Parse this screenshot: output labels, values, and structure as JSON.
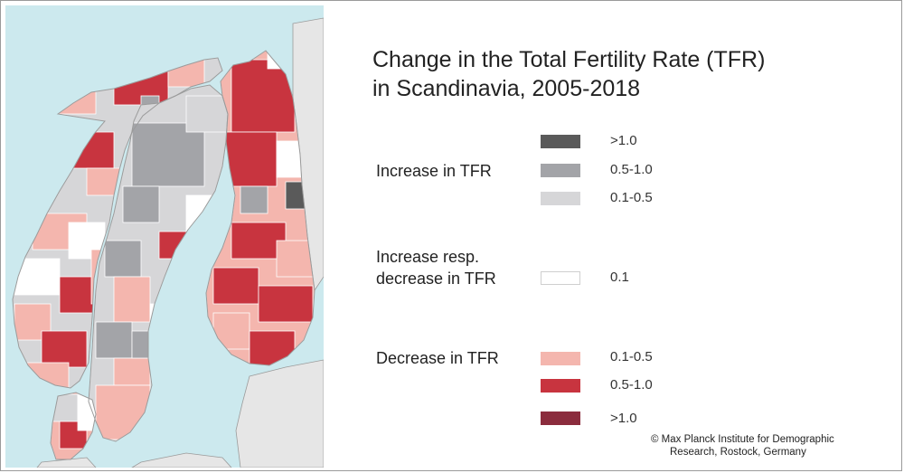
{
  "title": {
    "line1": "Change in the Total Fertility Rate (TFR)",
    "line2": "in Scandinavia, 2005-2018"
  },
  "legend": {
    "increase": {
      "label": "Increase in TFR",
      "classes": [
        {
          "label": ">1.0",
          "color": "#5a5a5a"
        },
        {
          "label": "0.5-1.0",
          "color": "#a3a4a8"
        },
        {
          "label": "0.1-0.5",
          "color": "#d6d6d8"
        }
      ]
    },
    "neutral": {
      "label_line1": "Increase resp.",
      "label_line2": "decrease in TFR",
      "classes": [
        {
          "label": "0.1",
          "color": "#ffffff"
        }
      ]
    },
    "decrease": {
      "label": "Decrease in TFR",
      "classes": [
        {
          "label": "0.1-0.5",
          "color": "#f4b6ae"
        },
        {
          "label": "0.5-1.0",
          "color": "#c8343f"
        },
        {
          "label": ">1.0",
          "color": "#8b2c3d"
        }
      ]
    }
  },
  "credit": {
    "line1": "© Max Planck Institute for Demographic",
    "line2": "Research, Rostock, Germany"
  },
  "map": {
    "sea_color": "#cce9ee",
    "foreign_land_color": "#e6e6e6",
    "border_color": "#9b9b9b"
  }
}
